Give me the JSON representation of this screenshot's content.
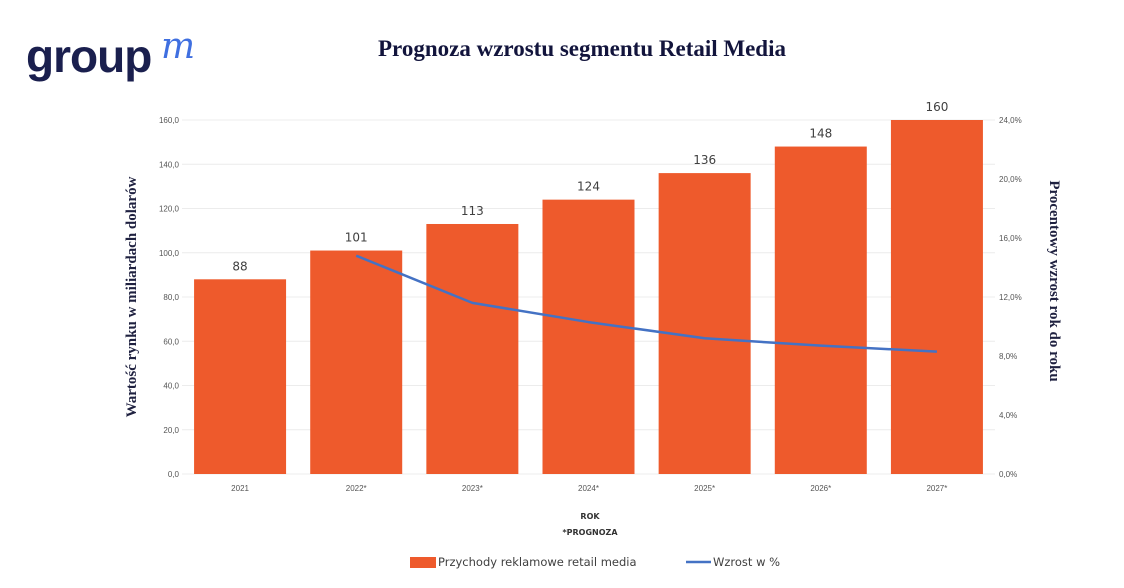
{
  "logo": {
    "text": "groupm"
  },
  "chart_data": {
    "type": "bar",
    "title": "Prognoza wzrostu segmentu Retail Media",
    "categories": [
      "2021",
      "2022*",
      "2023*",
      "2024*",
      "2025*",
      "2026*",
      "2027*"
    ],
    "series": [
      {
        "name": "Przychody reklamowe retail media",
        "type": "bar",
        "axis": "left",
        "values": [
          88,
          101,
          113,
          124,
          136,
          148,
          160
        ],
        "color": "#ee5a2c"
      },
      {
        "name": "Wzrost w %",
        "type": "line",
        "axis": "right",
        "values": [
          null,
          14.8,
          11.6,
          10.3,
          9.2,
          8.7,
          8.3
        ],
        "color": "#4472c4"
      }
    ],
    "data_labels": [
      "88",
      "101",
      "113",
      "124",
      "136",
      "148",
      "160"
    ],
    "ylabel": "Wartość rynku w miliardach dolarów",
    "y2label": "Procentowy wzrost rok do roku",
    "xlabel": "ROK",
    "xnote": "*PROGNOZA",
    "ylim": [
      0,
      160
    ],
    "y2lim": [
      0,
      24
    ],
    "yticks": [
      "0,0",
      "20,0",
      "40,0",
      "60,0",
      "80,0",
      "100,0",
      "120,0",
      "140,0",
      "160,0"
    ],
    "y2ticks": [
      "0,0%",
      "4,0%",
      "8,0%",
      "12,0%",
      "16,0%",
      "20,0%",
      "24,0%"
    ],
    "grid": true,
    "legend": "bottom"
  }
}
